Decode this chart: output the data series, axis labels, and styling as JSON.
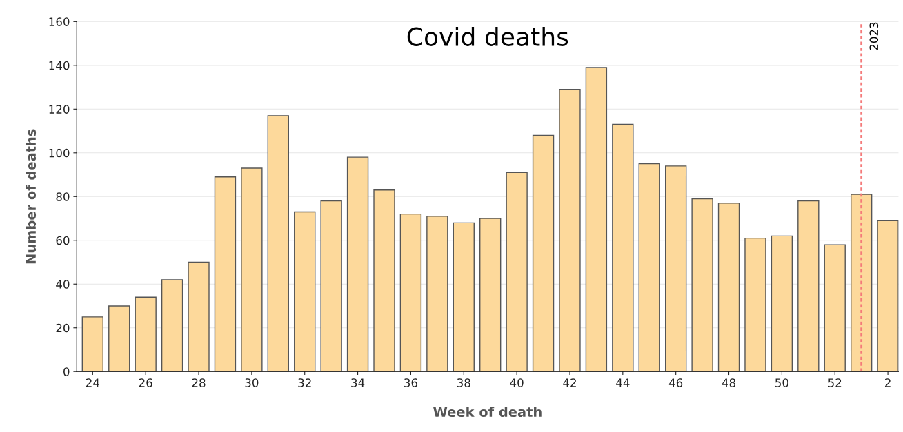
{
  "chart_data": {
    "type": "bar",
    "title": "Covid deaths",
    "xlabel": "Week of death",
    "ylabel": "Number of deaths",
    "categories": [
      "24",
      null,
      "26",
      null,
      "28",
      null,
      "30",
      null,
      "32",
      null,
      "34",
      null,
      "36",
      null,
      "38",
      null,
      "40",
      null,
      "42",
      null,
      "44",
      null,
      "46",
      null,
      "48",
      null,
      "50",
      null,
      "52",
      null,
      "2"
    ],
    "values": [
      25,
      30,
      34,
      42,
      50,
      89,
      93,
      117,
      73,
      78,
      98,
      83,
      72,
      71,
      68,
      70,
      91,
      108,
      129,
      139,
      113,
      95,
      94,
      79,
      77,
      61,
      62,
      78,
      58,
      81,
      69
    ],
    "color": "#fdd99b",
    "ylim": [
      0,
      160
    ],
    "yticks": [
      0,
      20,
      40,
      60,
      80,
      100,
      120,
      140,
      160
    ],
    "grid": "y",
    "annotations": [
      "2023"
    ]
  }
}
